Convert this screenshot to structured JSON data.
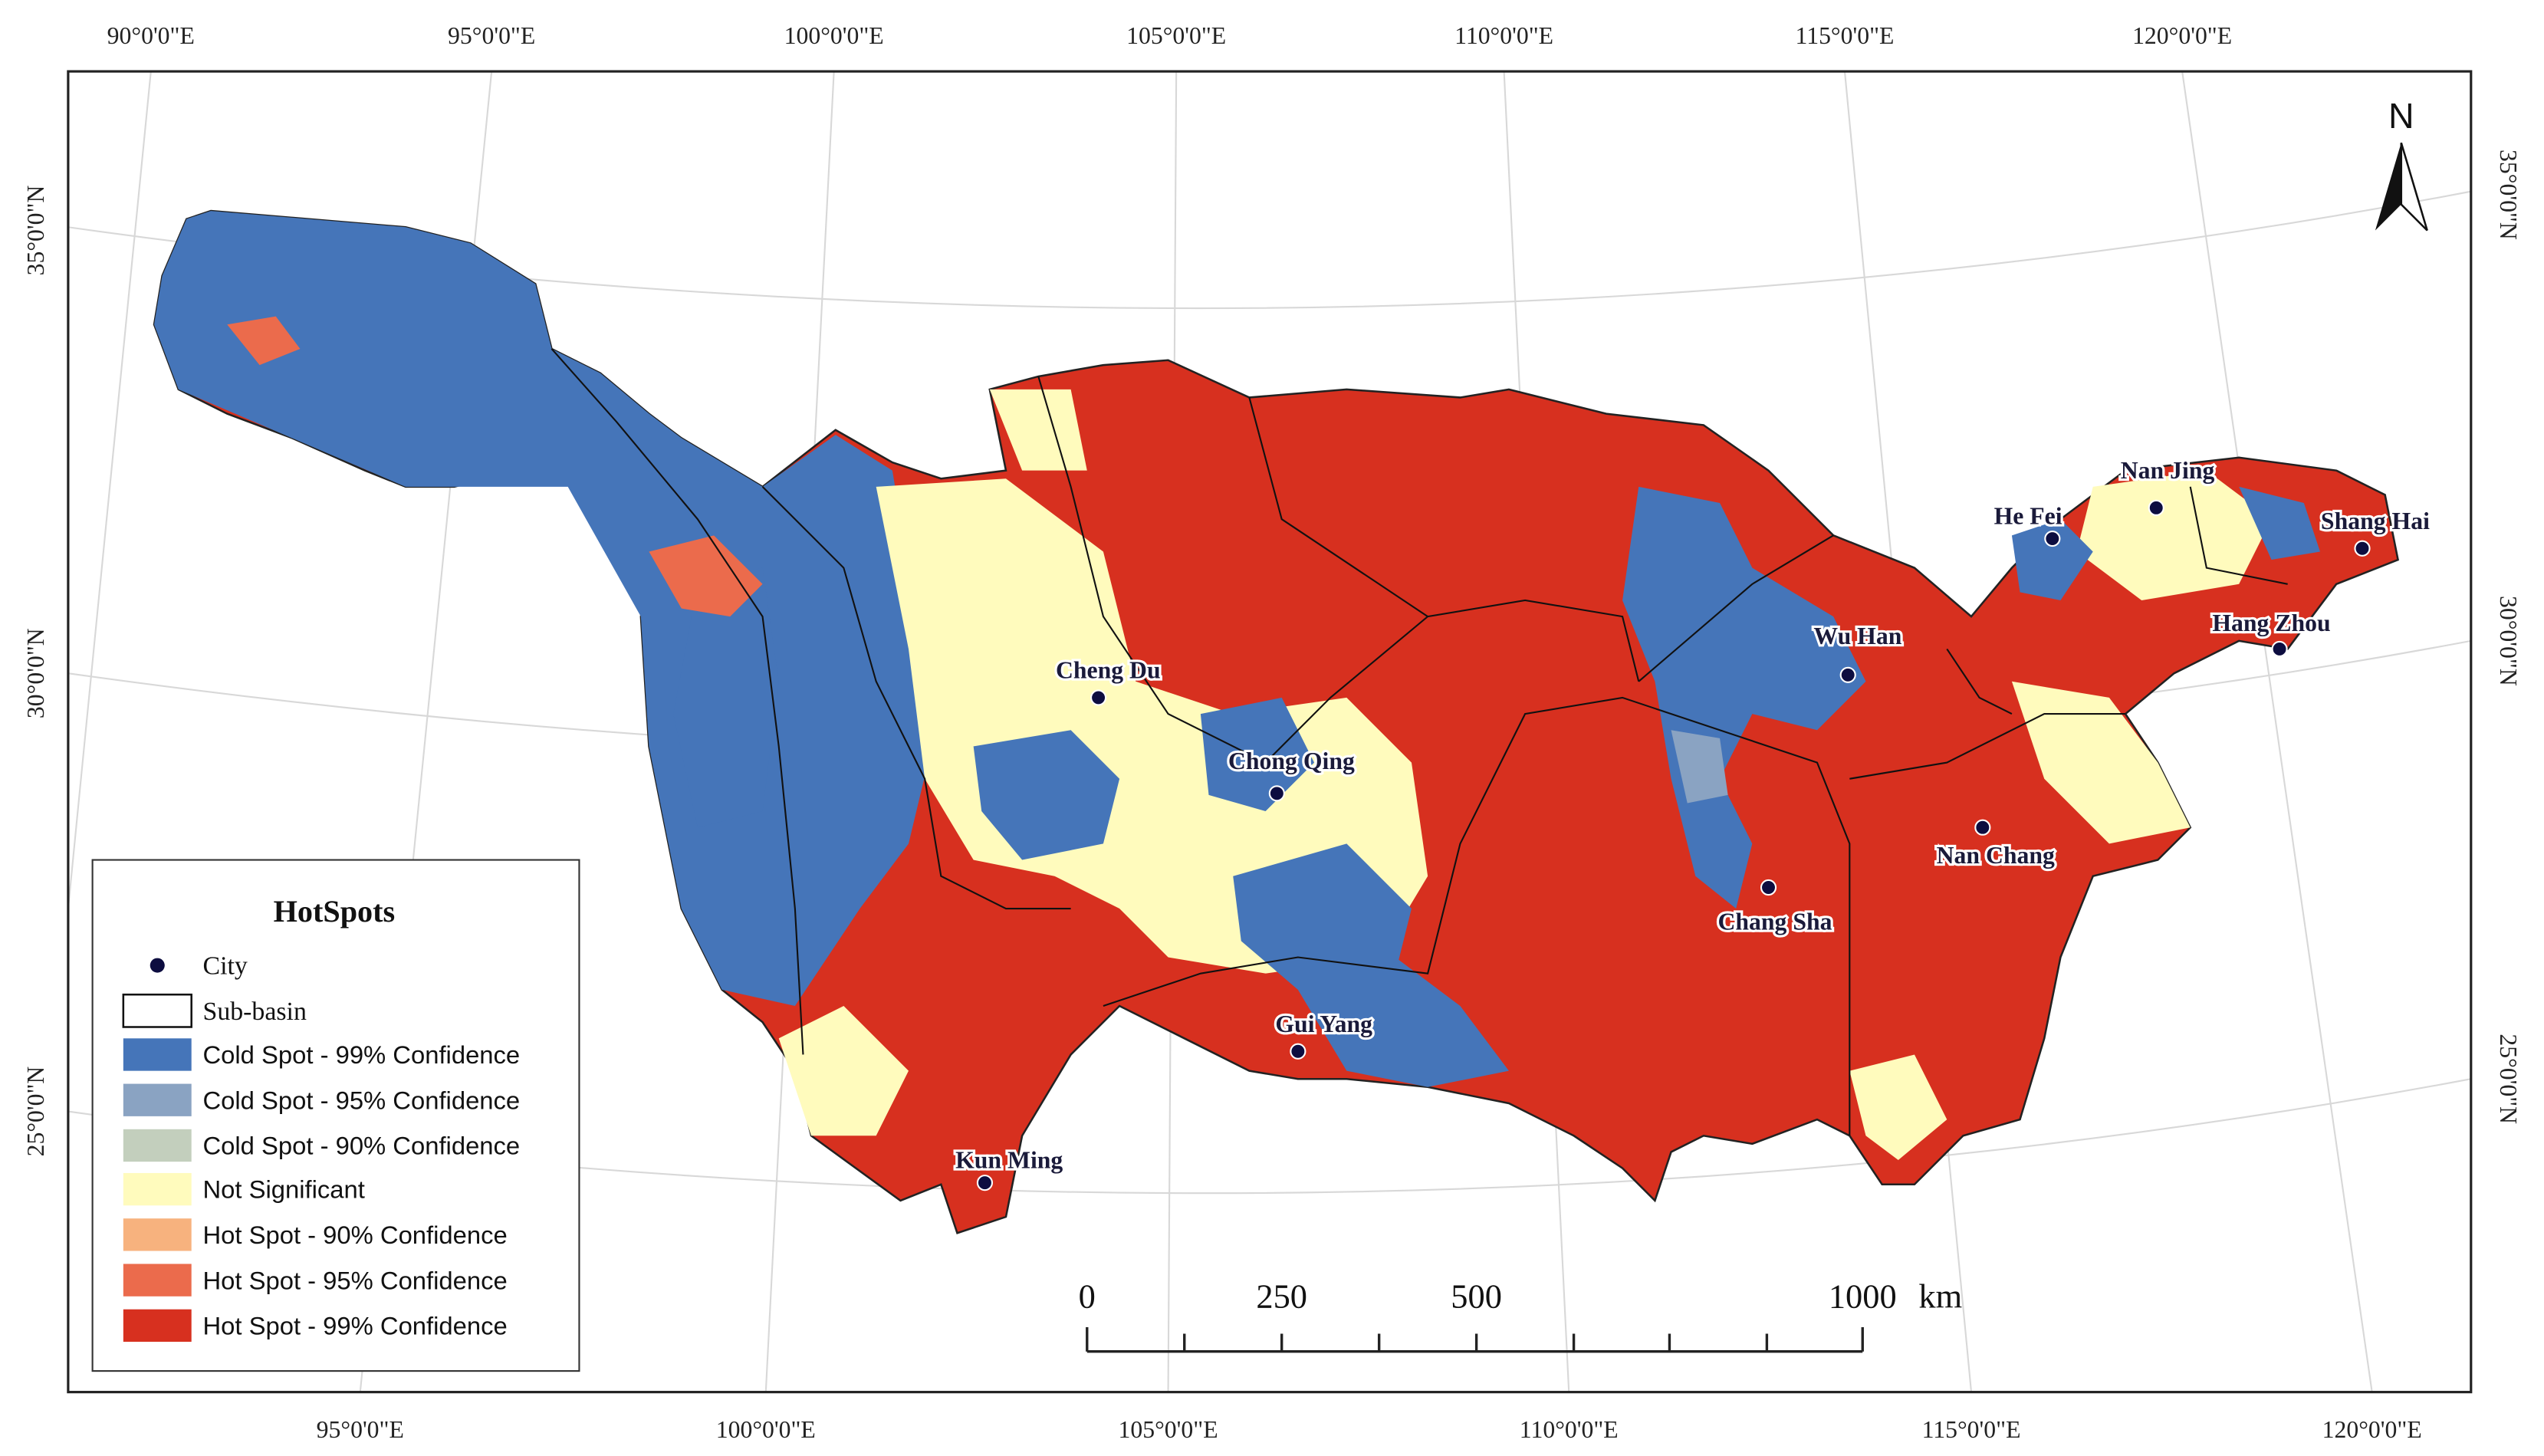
{
  "map": {
    "top_labels": [
      "90°0'0\"E",
      "95°0'0\"E",
      "100°0'0\"E",
      "105°0'0\"E",
      "110°0'0\"E",
      "115°0'0\"E",
      "120°0'0\"E"
    ],
    "bottom_labels": [
      "95°0'0\"E",
      "100°0'0\"E",
      "105°0'0\"E",
      "110°0'0\"E",
      "115°0'0\"E",
      "120°0'0\"E"
    ],
    "left_labels": [
      "35°0'0\"N",
      "30°0'0\"N",
      "25°0'0\"N"
    ],
    "right_labels": [
      "35°0'0\"N",
      "30°0'0\"N",
      "25°0'0\"N"
    ],
    "north": "N",
    "cities": [
      "Cheng Du",
      "Chong Qing",
      "Gui Yang",
      "Kun Ming",
      "Chang Sha",
      "Wu Han",
      "Nan Chang",
      "He Fei",
      "Nan Jing",
      "Shang Hai",
      "Hang Zhou"
    ]
  },
  "legend": {
    "title": "HotSpots",
    "items": [
      {
        "label": "City"
      },
      {
        "label": "Sub-basin"
      },
      {
        "label": "Cold Spot - 99% Confidence",
        "color": "#4575b9"
      },
      {
        "label": "Cold Spot - 95% Confidence",
        "color": "#8aa3c2"
      },
      {
        "label": "Cold Spot - 90% Confidence",
        "color": "#c3cfbd"
      },
      {
        "label": "Not Significant",
        "color": "#fffbbd"
      },
      {
        "label": "Hot Spot - 90% Confidence",
        "color": "#f7b27e"
      },
      {
        "label": "Hot Spot - 95% Confidence",
        "color": "#eb6b4c"
      },
      {
        "label": "Hot Spot - 99% Confidence",
        "color": "#d7301f"
      }
    ]
  },
  "scale_bar": {
    "labels": [
      "0",
      "250",
      "500",
      "1000"
    ],
    "unit": "km"
  }
}
